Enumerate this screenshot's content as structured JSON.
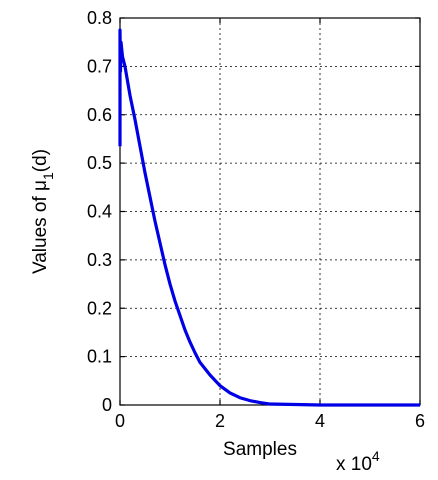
{
  "chart_data": {
    "type": "line",
    "xlabel": "Samples",
    "ylabel_prefix": "Values of μ",
    "ylabel_subscript": "1",
    "ylabel_suffix": "(d)",
    "x_multiplier_base": "x 10",
    "x_multiplier_exp": "4",
    "xlim": [
      0,
      6
    ],
    "ylim": [
      0,
      0.8
    ],
    "x_ticks": [
      "0",
      "2",
      "4",
      "6"
    ],
    "y_ticks": [
      "0",
      "0.1",
      "0.2",
      "0.3",
      "0.4",
      "0.5",
      "0.6",
      "0.7",
      "0.8"
    ],
    "grid": true,
    "series": [
      {
        "color": "#0000e6",
        "x": [
          0,
          0,
          0.01,
          0.02,
          0.05,
          0.1,
          0.2,
          0.3,
          0.4,
          0.5,
          0.6,
          0.7,
          0.8,
          0.9,
          1.0,
          1.1,
          1.2,
          1.3,
          1.4,
          1.5,
          1.6,
          1.8,
          2.0,
          2.2,
          2.4,
          2.6,
          2.8,
          3.0,
          3.5,
          4.0,
          5.0,
          6.0
        ],
        "y": [
          0.535,
          0.775,
          0.69,
          0.75,
          0.72,
          0.7,
          0.64,
          0.59,
          0.535,
          0.48,
          0.43,
          0.38,
          0.335,
          0.29,
          0.25,
          0.215,
          0.185,
          0.155,
          0.13,
          0.108,
          0.088,
          0.062,
          0.04,
          0.025,
          0.015,
          0.009,
          0.005,
          0.002,
          0.001,
          0.0,
          0.0,
          0.0
        ]
      }
    ]
  }
}
